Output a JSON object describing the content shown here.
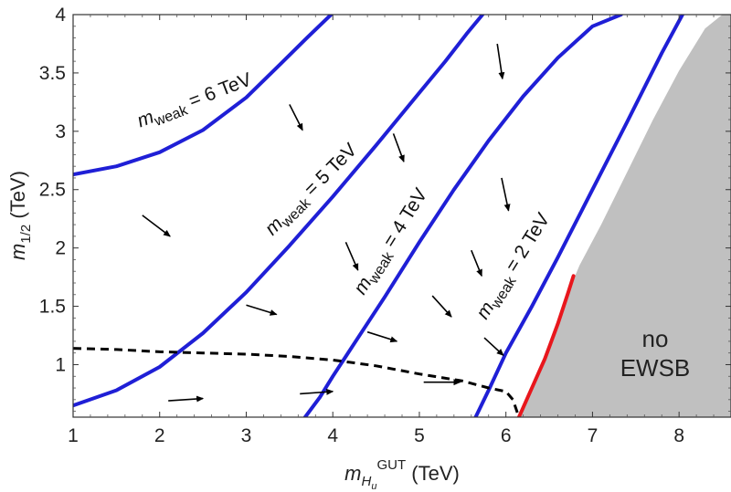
{
  "chart_data": {
    "type": "line",
    "xlabel": {
      "main": "m",
      "sub": "H",
      "subsub": "u",
      "sup": "GUT",
      "unit": " (TeV)"
    },
    "ylabel": {
      "main": "m",
      "sub": "1/2",
      "unit": " (TeV)"
    },
    "xlim": [
      1,
      8.6
    ],
    "ylim": [
      0.55,
      4
    ],
    "x_ticks": [
      "1",
      "2",
      "3",
      "4",
      "5",
      "6",
      "7",
      "8"
    ],
    "y_ticks": [
      "1",
      "1.5",
      "2",
      "2.5",
      "3",
      "3.5",
      "4"
    ],
    "series": [
      {
        "name": "m_weak = 6 TeV",
        "color": "#1f1fd6",
        "style": "solid",
        "x": [
          1.0,
          1.5,
          2.0,
          2.5,
          3.0,
          3.4,
          3.7,
          3.98
        ],
        "y": [
          2.63,
          2.7,
          2.82,
          3.01,
          3.29,
          3.58,
          3.8,
          4.0
        ]
      },
      {
        "name": "m_weak = 5 TeV",
        "color": "#1f1fd6",
        "style": "solid",
        "x": [
          1.0,
          1.5,
          2.0,
          2.5,
          3.0,
          3.5,
          4.0,
          4.5,
          5.0,
          5.3,
          5.55,
          5.73
        ],
        "y": [
          0.65,
          0.78,
          0.98,
          1.27,
          1.62,
          2.02,
          2.44,
          2.88,
          3.33,
          3.6,
          3.84,
          4.0
        ]
      },
      {
        "name": "m_weak = 4 TeV",
        "color": "#1f1fd6",
        "style": "solid",
        "x": [
          3.68,
          3.85,
          4.0,
          4.3,
          4.6,
          5.0,
          5.4,
          5.8,
          6.2,
          6.6,
          7.0,
          7.33
        ],
        "y": [
          0.55,
          0.72,
          0.9,
          1.24,
          1.58,
          2.05,
          2.5,
          2.92,
          3.3,
          3.63,
          3.9,
          4.0
        ]
      },
      {
        "name": "m_weak = 2 TeV",
        "color": "#1f1fd6",
        "style": "solid",
        "x": [
          5.65,
          5.8,
          6.0,
          6.3,
          6.6,
          7.0,
          7.4,
          7.8,
          8.04
        ],
        "y": [
          0.55,
          0.78,
          1.1,
          1.5,
          1.92,
          2.5,
          3.08,
          3.67,
          4.0
        ]
      },
      {
        "name": "red boundary",
        "color": "#e8161c",
        "style": "solid",
        "x": [
          6.15,
          6.3,
          6.45,
          6.6,
          6.72,
          6.78
        ],
        "y": [
          0.55,
          0.8,
          1.05,
          1.35,
          1.62,
          1.76
        ]
      },
      {
        "name": "dashed contour",
        "color": "#000000",
        "style": "dashed",
        "x": [
          1.0,
          1.5,
          2.0,
          2.5,
          3.0,
          3.5,
          4.0,
          4.5,
          5.0,
          5.5,
          5.8,
          6.0,
          6.08,
          6.15
        ],
        "y": [
          1.14,
          1.13,
          1.11,
          1.1,
          1.09,
          1.07,
          1.04,
          0.99,
          0.92,
          0.86,
          0.8,
          0.77,
          0.7,
          0.55
        ]
      }
    ],
    "shaded_region": {
      "color": "#c0c0c0",
      "x": [
        6.15,
        6.3,
        6.45,
        6.6,
        6.72,
        6.85,
        7.1,
        7.4,
        7.7,
        8.0,
        8.3,
        8.5,
        8.6
      ],
      "y": [
        0.55,
        0.8,
        1.05,
        1.35,
        1.62,
        1.85,
        2.2,
        2.65,
        3.1,
        3.52,
        3.88,
        4.0,
        4.0
      ]
    },
    "region_label": [
      "no",
      "EWSB"
    ],
    "curve_labels": [
      {
        "prefix": "m",
        "sub": "weak",
        "rest": " = 6 TeV"
      },
      {
        "prefix": "m",
        "sub": "weak",
        "rest": " = 5 TeV"
      },
      {
        "prefix": "m",
        "sub": "weak",
        "rest": " = 4 TeV"
      },
      {
        "prefix": "m",
        "sub": "weak",
        "rest": " = 2 TeV"
      }
    ],
    "arrows": [
      {
        "x": 1.8,
        "y": 2.28,
        "dx": 0.32,
        "dy": -0.18
      },
      {
        "x": 3.5,
        "y": 3.23,
        "dx": 0.15,
        "dy": -0.22
      },
      {
        "x": 4.7,
        "y": 2.98,
        "dx": 0.12,
        "dy": -0.24
      },
      {
        "x": 5.9,
        "y": 3.75,
        "dx": 0.06,
        "dy": -0.3
      },
      {
        "x": 5.95,
        "y": 2.6,
        "dx": 0.08,
        "dy": -0.28
      },
      {
        "x": 4.15,
        "y": 2.05,
        "dx": 0.14,
        "dy": -0.24
      },
      {
        "x": 5.6,
        "y": 1.98,
        "dx": 0.12,
        "dy": -0.22
      },
      {
        "x": 3.0,
        "y": 1.51,
        "dx": 0.35,
        "dy": -0.08
      },
      {
        "x": 5.15,
        "y": 1.59,
        "dx": 0.22,
        "dy": -0.18
      },
      {
        "x": 4.4,
        "y": 1.28,
        "dx": 0.34,
        "dy": -0.08
      },
      {
        "x": 5.75,
        "y": 1.23,
        "dx": 0.22,
        "dy": -0.15
      },
      {
        "x": 2.1,
        "y": 0.69,
        "dx": 0.4,
        "dy": 0.02
      },
      {
        "x": 3.62,
        "y": 0.75,
        "dx": 0.38,
        "dy": 0.02
      },
      {
        "x": 5.05,
        "y": 0.85,
        "dx": 0.42,
        "dy": 0.0
      }
    ]
  }
}
